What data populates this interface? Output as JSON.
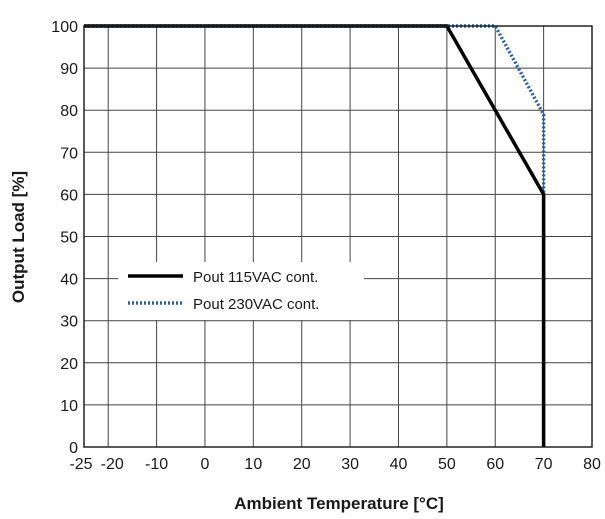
{
  "chart_data": {
    "type": "line",
    "title": "",
    "xlabel": "Ambient Temperature [°C]",
    "ylabel": "Output Load [%]",
    "xlim": [
      -25,
      80
    ],
    "ylim": [
      0,
      100
    ],
    "x_ticks": [
      -25,
      -20,
      -10,
      0,
      10,
      20,
      30,
      40,
      50,
      60,
      70,
      80
    ],
    "x_tick_labels": [
      "-25",
      "-20",
      "-10",
      "0",
      "10",
      "20",
      "30",
      "40",
      "50",
      "60",
      "70",
      "80"
    ],
    "y_ticks": [
      0,
      10,
      20,
      30,
      40,
      50,
      60,
      70,
      80,
      90,
      100
    ],
    "y_tick_labels": [
      "0",
      "10",
      "20",
      "30",
      "40",
      "50",
      "60",
      "70",
      "80",
      "90",
      "100"
    ],
    "grid": true,
    "legend_position": "center-left",
    "series": [
      {
        "name": "Pout 115VAC cont.",
        "color": "#000000",
        "style": "solid",
        "points": [
          [
            -25,
            100
          ],
          [
            50,
            100
          ],
          [
            70,
            60
          ],
          [
            70,
            0
          ]
        ]
      },
      {
        "name": "Pout 230VAC cont.",
        "color": "#2b5fa8",
        "style": "dotted",
        "points": [
          [
            -25,
            100
          ],
          [
            60,
            100
          ],
          [
            70,
            79
          ],
          [
            70,
            60
          ],
          [
            70,
            0
          ]
        ]
      }
    ]
  }
}
